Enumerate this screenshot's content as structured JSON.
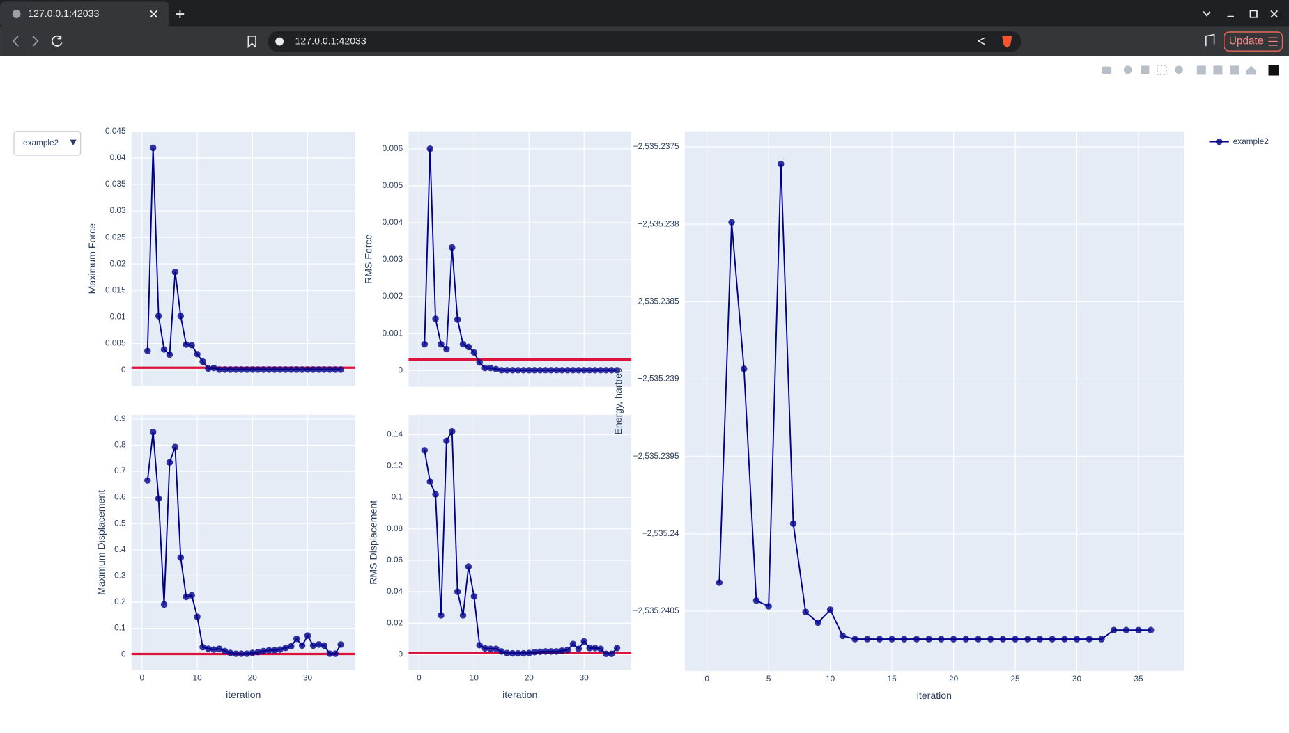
{
  "browser": {
    "tab_title": "127.0.0.1:42033",
    "url": "127.0.0.1:42033",
    "update_button": "Update"
  },
  "dropdown": {
    "selected": "example2"
  },
  "chart_data": [
    {
      "type": "line",
      "ylabel": "Maximum Force",
      "xticklabels": false,
      "x": [
        1,
        2,
        3,
        4,
        5,
        6,
        7,
        8,
        9,
        10,
        11,
        12,
        13,
        14,
        15,
        16,
        17,
        18,
        19,
        20,
        21,
        22,
        23,
        24,
        25,
        26,
        27,
        28,
        29,
        30,
        31,
        32,
        33,
        34,
        35,
        36
      ],
      "series": [
        {
          "color": "#00008b",
          "values": [
            0.0036,
            0.0419,
            0.0102,
            0.0039,
            0.0029,
            0.0185,
            0.0102,
            0.0048,
            0.0047,
            0.003,
            0.0016,
            0.0003,
            0.0004,
            0.0001,
            0.0001,
            0.0001,
            0.0001,
            0.0001,
            0.0001,
            0.0001,
            0.0001,
            0.0001,
            0.0001,
            0.0001,
            0.0001,
            0.0001,
            0.0001,
            0.0001,
            0.0001,
            0.0001,
            0.0001,
            0.0001,
            0.0001,
            0.0001,
            0.0001,
            0.0001
          ]
        }
      ],
      "threshold": {
        "value": 0.00045,
        "color": "#dc143c"
      },
      "xlim": [
        -1.9,
        38.6
      ],
      "xticks": [
        0,
        10,
        20,
        30
      ],
      "ylim": [
        -0.003,
        0.045
      ],
      "yticks": [
        0,
        0.005,
        0.01,
        0.015,
        0.02,
        0.025,
        0.03,
        0.035,
        0.04,
        0.045
      ],
      "grid": true
    },
    {
      "type": "line",
      "ylabel": "RMS Force",
      "xticklabels": false,
      "x": [
        1,
        2,
        3,
        4,
        5,
        6,
        7,
        8,
        9,
        10,
        11,
        12,
        13,
        14,
        15,
        16,
        17,
        18,
        19,
        20,
        21,
        22,
        23,
        24,
        25,
        26,
        27,
        28,
        29,
        30,
        31,
        32,
        33,
        34,
        35,
        36
      ],
      "series": [
        {
          "color": "#00008b",
          "values": [
            0.00071,
            0.006,
            0.0014,
            0.00071,
            0.00058,
            0.00333,
            0.00138,
            0.00071,
            0.00064,
            0.00049,
            0.00022,
            7e-05,
            7e-05,
            4e-05,
            1e-05,
            1e-05,
            1e-05,
            1e-05,
            1e-05,
            1e-05,
            1e-05,
            1e-05,
            1e-05,
            1e-05,
            1e-05,
            1e-05,
            1e-05,
            1e-05,
            1e-05,
            1e-05,
            1e-05,
            1e-05,
            1e-05,
            1e-05,
            1e-05,
            1e-05
          ]
        }
      ],
      "threshold": {
        "value": 0.0003,
        "color": "#dc143c"
      },
      "xlim": [
        -1.9,
        38.6
      ],
      "xticks": [
        0,
        10,
        20,
        30
      ],
      "ylim": [
        -0.00044,
        0.00647
      ],
      "yticks": [
        0,
        0.001,
        0.002,
        0.003,
        0.004,
        0.005,
        0.006
      ],
      "grid": true
    },
    {
      "type": "line",
      "ylabel": "Maximum Displacement",
      "xlabel": "iteration",
      "xticklabels": true,
      "x": [
        1,
        2,
        3,
        4,
        5,
        6,
        7,
        8,
        9,
        10,
        11,
        12,
        13,
        14,
        15,
        16,
        17,
        18,
        19,
        20,
        21,
        22,
        23,
        24,
        25,
        26,
        27,
        28,
        29,
        30,
        31,
        32,
        33,
        34,
        35,
        36
      ],
      "series": [
        {
          "color": "#00008b",
          "values": [
            0.665,
            0.85,
            0.596,
            0.191,
            0.734,
            0.793,
            0.37,
            0.22,
            0.226,
            0.144,
            0.028,
            0.022,
            0.019,
            0.022,
            0.013,
            0.006,
            0.003,
            0.003,
            0.003,
            0.006,
            0.009,
            0.013,
            0.016,
            0.016,
            0.019,
            0.025,
            0.031,
            0.06,
            0.034,
            0.072,
            0.034,
            0.038,
            0.034,
            0.003,
            0.003,
            0.038
          ]
        }
      ],
      "threshold": {
        "value": 0.0018,
        "color": "#dc143c"
      },
      "xlim": [
        -1.9,
        38.6
      ],
      "xticks": [
        0,
        10,
        20,
        30
      ],
      "ylim": [
        -0.06,
        0.916
      ],
      "yticks": [
        0,
        0.1,
        0.2,
        0.3,
        0.4,
        0.5,
        0.6,
        0.7,
        0.8,
        0.9
      ],
      "grid": true
    },
    {
      "type": "line",
      "ylabel": "RMS Displacement",
      "xlabel": "iteration",
      "xticklabels": true,
      "x": [
        1,
        2,
        3,
        4,
        5,
        6,
        7,
        8,
        9,
        10,
        11,
        12,
        13,
        14,
        15,
        16,
        17,
        18,
        19,
        20,
        21,
        22,
        23,
        24,
        25,
        26,
        27,
        28,
        29,
        30,
        31,
        32,
        33,
        34,
        35,
        36
      ],
      "series": [
        {
          "color": "#00008b",
          "values": [
            0.13,
            0.11,
            0.102,
            0.025,
            0.136,
            0.142,
            0.04,
            0.025,
            0.056,
            0.037,
            0.006,
            0.004,
            0.0037,
            0.0037,
            0.002,
            0.001,
            0.0008,
            0.0008,
            0.0008,
            0.001,
            0.0016,
            0.0018,
            0.002,
            0.002,
            0.002,
            0.0025,
            0.003,
            0.0068,
            0.0037,
            0.0084,
            0.0042,
            0.0042,
            0.0037,
            0.0005,
            0.0005,
            0.0042
          ]
        }
      ],
      "threshold": {
        "value": 0.0012,
        "color": "#dc143c"
      },
      "xlim": [
        -1.9,
        38.6
      ],
      "xticks": [
        0,
        10,
        20,
        30
      ],
      "ylim": [
        -0.0099,
        0.1526
      ],
      "yticks": [
        0,
        0.02,
        0.04,
        0.06,
        0.08,
        0.1,
        0.12,
        0.14
      ],
      "grid": true
    },
    {
      "type": "line",
      "ylabel": "Energy, hartree",
      "xlabel": "iteration",
      "xticklabels": true,
      "x": [
        1,
        2,
        3,
        4,
        5,
        6,
        7,
        8,
        9,
        10,
        11,
        12,
        13,
        14,
        15,
        16,
        17,
        18,
        19,
        20,
        21,
        22,
        23,
        24,
        25,
        26,
        27,
        28,
        29,
        30,
        31,
        32,
        33,
        34,
        35,
        36
      ],
      "series": [
        {
          "name": "example2",
          "color": "#00008b",
          "values": [
            -2535.240315,
            -2535.237987,
            -2535.238934,
            -2535.240431,
            -2535.240468,
            -2535.237611,
            -2535.239934,
            -2535.240505,
            -2535.240574,
            -2535.24049,
            -2535.240659,
            -2535.24068,
            -2535.24068,
            -2535.24068,
            -2535.24068,
            -2535.24068,
            -2535.24068,
            -2535.24068,
            -2535.24068,
            -2535.24068,
            -2535.24068,
            -2535.24068,
            -2535.24068,
            -2535.24068,
            -2535.24068,
            -2535.24068,
            -2535.24068,
            -2535.24068,
            -2535.24068,
            -2535.24068,
            -2535.24068,
            -2535.24068,
            -2535.240622,
            -2535.240622,
            -2535.240622,
            -2535.240622
          ]
        }
      ],
      "xlim": [
        -1.8,
        38.67
      ],
      "xticks": [
        0,
        5,
        10,
        15,
        20,
        25,
        30,
        35
      ],
      "ylim": [
        -2535.240886,
        -2535.2374
      ],
      "yticks": [
        {
          "value": -2535.2375,
          "label": "−2,535.2375"
        },
        {
          "value": -2535.238,
          "label": "−2,535.238"
        },
        {
          "value": -2535.2385,
          "label": "−2,535.2385"
        },
        {
          "value": -2535.239,
          "label": "−2,535.239"
        },
        {
          "value": -2535.2395,
          "label": "−2,535.2395"
        },
        {
          "value": -2535.24,
          "label": "−2,535.24"
        },
        {
          "value": -2535.2405,
          "label": "−2,535.2405"
        }
      ],
      "grid": true
    }
  ]
}
